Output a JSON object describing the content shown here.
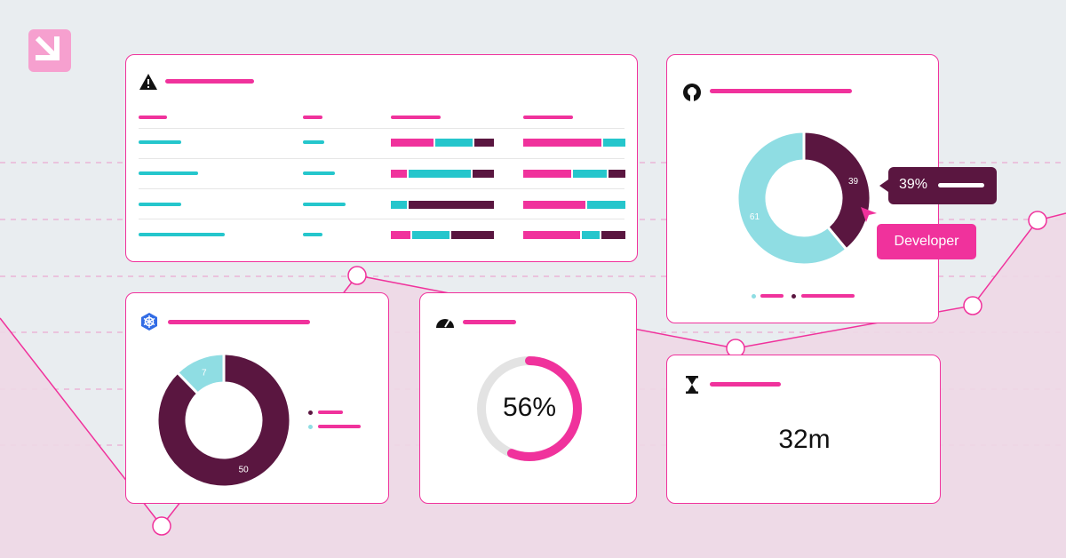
{
  "colors": {
    "pink": "#f0329c",
    "teal": "#25c6cc",
    "light_teal": "#8fdde3",
    "plum": "#5a1640",
    "background": "#e9edf0",
    "area": "#eed7e6"
  },
  "logo": {
    "icon": "brand-logo-icon"
  },
  "issues_card": {
    "icon": "warning-icon",
    "rows": 4
  },
  "github_card": {
    "icon": "github-icon",
    "chart_data": {
      "type": "pie",
      "labels": [
        "",
        ""
      ],
      "values": [
        39,
        61
      ],
      "colors": [
        "#5a1640",
        "#8fdde3"
      ]
    },
    "tooltip_value": "39%",
    "pill_label": "Developer"
  },
  "kubernetes_card": {
    "icon": "kubernetes-icon",
    "chart_data": {
      "type": "pie",
      "labels": [
        "",
        ""
      ],
      "values": [
        50,
        7
      ],
      "colors": [
        "#5a1640",
        "#8fdde3"
      ]
    }
  },
  "gauge_card": {
    "icon": "speedometer-icon",
    "value_text": "56%",
    "progress": 0.56
  },
  "timer_card": {
    "icon": "hourglass-icon",
    "value_text": "32m"
  }
}
